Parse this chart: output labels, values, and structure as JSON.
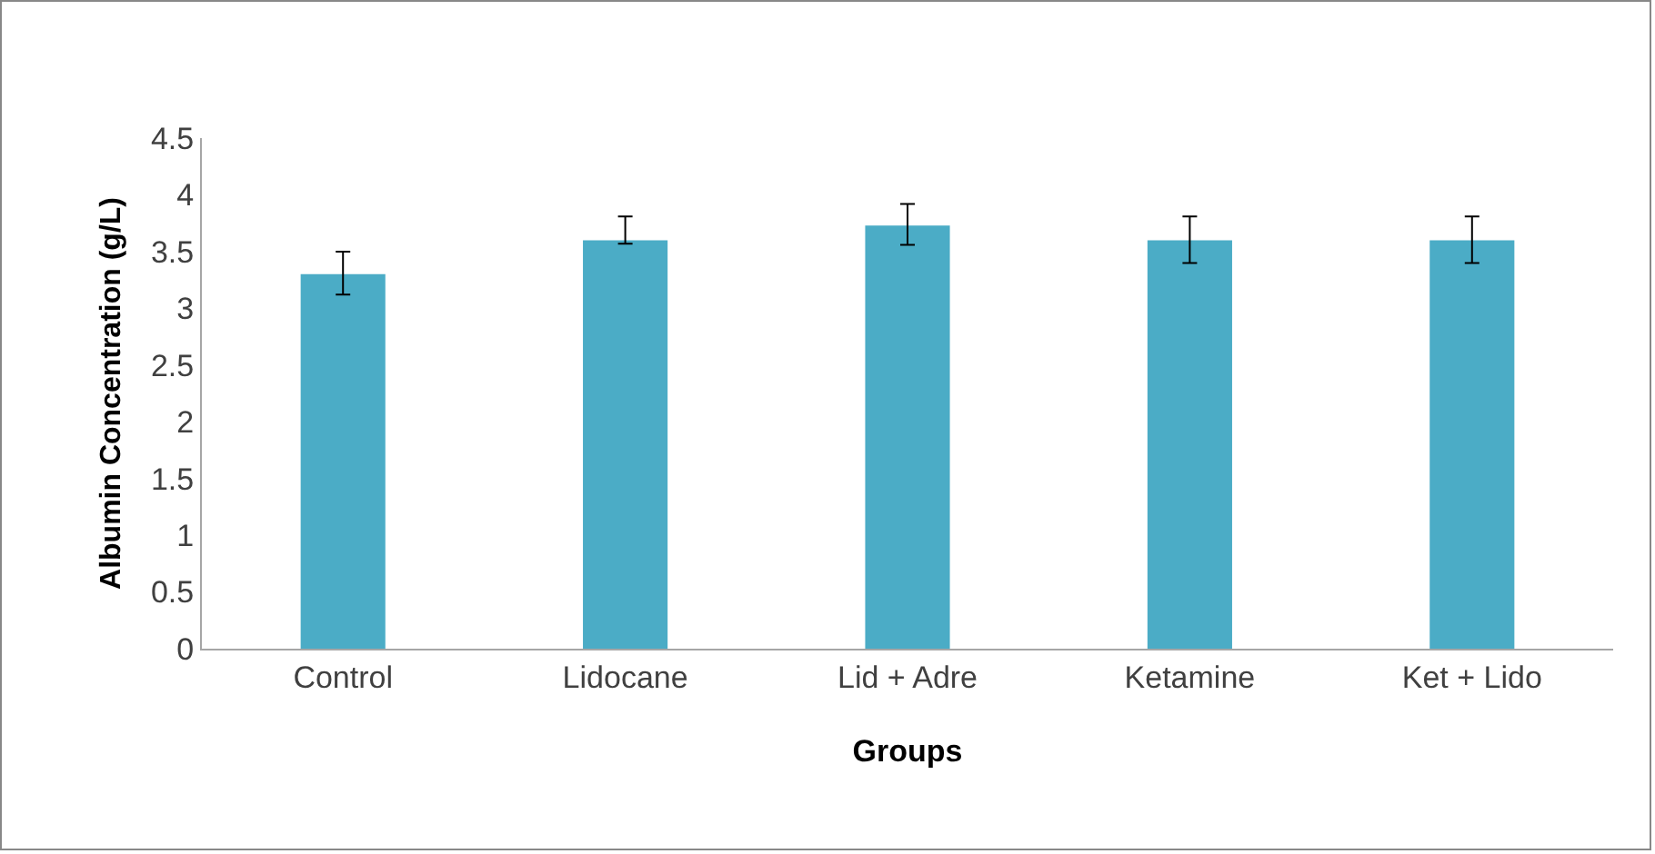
{
  "chart_data": {
    "type": "bar",
    "xlabel": "Groups",
    "ylabel": "Albumin Concentration (g/L)",
    "categories": [
      "Control",
      "Lidocane",
      "Lid + Adre",
      "Ketamine",
      "Ket + Lido"
    ],
    "values": [
      3.3,
      3.6,
      3.73,
      3.6,
      3.6
    ],
    "errors": [
      [
        3.12,
        3.5
      ],
      [
        3.57,
        3.81
      ],
      [
        3.56,
        3.92
      ],
      [
        3.4,
        3.81
      ],
      [
        3.4,
        3.81
      ]
    ],
    "color": "#4bacc6",
    "ylim": [
      0,
      4.5
    ],
    "yticks": [
      0,
      0.5,
      1,
      1.5,
      2,
      2.5,
      3,
      3.5,
      4,
      4.5
    ],
    "grid": false,
    "legend": false
  }
}
